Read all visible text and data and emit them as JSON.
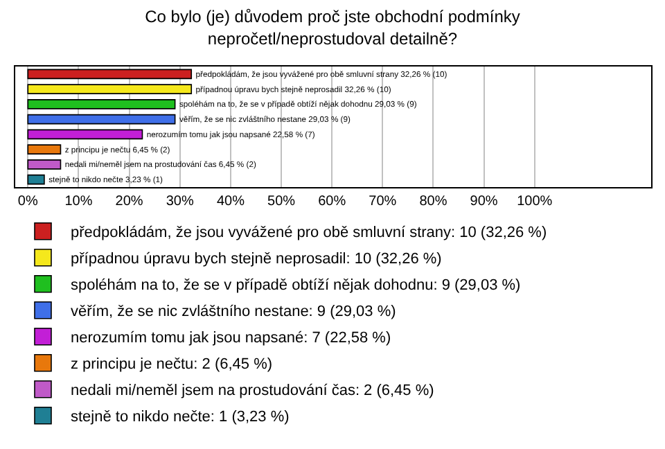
{
  "chart_data": {
    "type": "bar",
    "orientation": "horizontal",
    "title": "Co bylo (je) důvodem proč jste obchodní podmínky\nnepročetl/neprostudoval detailně?",
    "categories": [
      null,
      null,
      null,
      null,
      null,
      null,
      null,
      null
    ],
    "series": [
      {
        "name": "předpokládám, že jsou vyvážené pro obě smluvní strany: 10 (32,26 %)",
        "color": "#cc2020",
        "values": [
          32.26,
          null,
          null,
          null,
          null,
          null,
          null,
          null
        ],
        "value_labels": [
          "předpokládám, že jsou vyvážené pro obě smluvní strany 32,26 % (10)",
          null,
          null,
          null,
          null,
          null,
          null,
          null
        ]
      },
      {
        "name": "případnou úpravu bych stejně neprosadil: 10 (32,26 %)",
        "color": "#f5e81c",
        "values": [
          null,
          32.26,
          null,
          null,
          null,
          null,
          null,
          null
        ],
        "value_labels": [
          null,
          "případnou úpravu bych stejně neprosadil 32,26 % (10)",
          null,
          null,
          null,
          null,
          null,
          null
        ]
      },
      {
        "name": "spoléhám na to, že se v případě obtíží nějak dohodnu: 9 (29,03 %)",
        "color": "#1fbf1f",
        "values": [
          null,
          null,
          29.03,
          null,
          null,
          null,
          null,
          null
        ],
        "value_labels": [
          null,
          null,
          "spoléhám na to, že se v případě obtíží nějak dohodnu 29,03 % (9)",
          null,
          null,
          null,
          null,
          null
        ]
      },
      {
        "name": "věřím, že se nic zvláštního nestane: 9 (29,03 %)",
        "color": "#3f6fe8",
        "values": [
          null,
          null,
          null,
          29.03,
          null,
          null,
          null,
          null
        ],
        "value_labels": [
          null,
          null,
          null,
          "věřím, že se nic zvláštního nestane 29,03 % (9)",
          null,
          null,
          null,
          null
        ]
      },
      {
        "name": "nerozumím tomu jak jsou napsané: 7 (22,58 %)",
        "color": "#c21fd6",
        "values": [
          null,
          null,
          null,
          null,
          22.58,
          null,
          null,
          null
        ],
        "value_labels": [
          null,
          null,
          null,
          null,
          "nerozumím tomu jak jsou napsané 22,58 % (7)",
          null,
          null,
          null
        ]
      },
      {
        "name": "z principu je nečtu: 2 (6,45 %)",
        "color": "#e8780c",
        "values": [
          null,
          null,
          null,
          null,
          null,
          6.45,
          null,
          null
        ],
        "value_labels": [
          null,
          null,
          null,
          null,
          null,
          "z principu je nečtu 6,45 % (2)",
          null,
          null
        ]
      },
      {
        "name": "nedali mi/neměl jsem na prostudování čas: 2 (6,45 %)",
        "color": "#c05ac8",
        "values": [
          null,
          null,
          null,
          null,
          null,
          null,
          6.45,
          null
        ],
        "value_labels": [
          null,
          null,
          null,
          null,
          null,
          null,
          "nedali mi/neměl jsem na prostudování čas 6,45 % (2)",
          null
        ]
      },
      {
        "name": "stejně to nikdo nečte: 1 (3,23 %)",
        "color": "#1f7f94",
        "values": [
          null,
          null,
          null,
          null,
          null,
          null,
          null,
          3.23
        ],
        "value_labels": [
          null,
          null,
          null,
          null,
          null,
          null,
          null,
          "stejně to nikdo nečte 3,23 % (1)"
        ]
      }
    ],
    "xlim": [
      -2.5,
      123
    ],
    "xticks": [
      {
        "value": 0,
        "label": "0%"
      },
      {
        "value": 10,
        "label": "10%"
      },
      {
        "value": 20,
        "label": "20%"
      },
      {
        "value": 30,
        "label": "30%"
      },
      {
        "value": 40,
        "label": "40%"
      },
      {
        "value": 50,
        "label": "50%"
      },
      {
        "value": 60,
        "label": "60%"
      },
      {
        "value": 70,
        "label": "70%"
      },
      {
        "value": 80,
        "label": "80%"
      },
      {
        "value": 90,
        "label": "90%"
      },
      {
        "value": 100,
        "label": "100%"
      }
    ],
    "grid": "x",
    "legend": "bottom",
    "tick_labels": "x"
  }
}
